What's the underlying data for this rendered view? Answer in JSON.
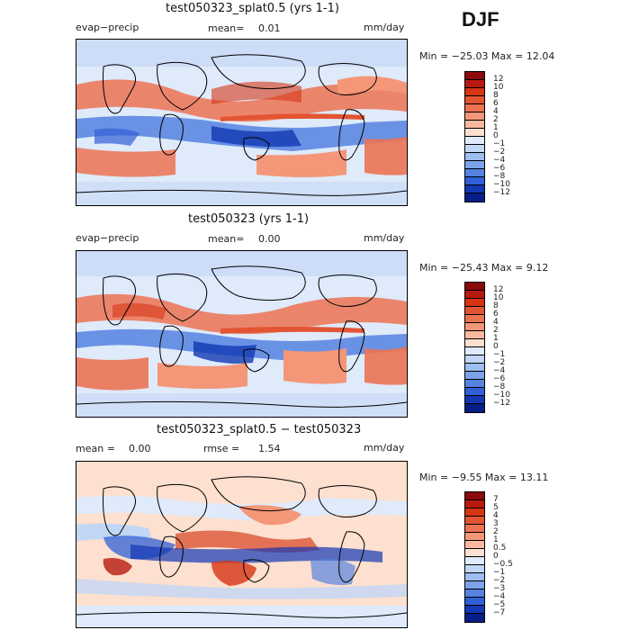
{
  "season": "DJF",
  "panels": [
    {
      "id": "top",
      "title": "test050323_splat0.5 (yrs 1-1)",
      "left_label": "evap−precip",
      "stat1_label": "mean=",
      "stat1_value": "0.01",
      "stat2_label": "",
      "stat2_value": "",
      "units": "mm/day",
      "minmax": "Min = −25.03  Max =   12.04",
      "levels": [
        "12",
        "10",
        "8",
        "6",
        "4",
        "2",
        "1",
        "0",
        "−1",
        "−2",
        "−4",
        "−6",
        "−8",
        "−10",
        "−12"
      ],
      "colors": [
        "#8b0a0a",
        "#b8190e",
        "#d63514",
        "#e35432",
        "#ec7352",
        "#f49678",
        "#f9b9a0",
        "#fde0cf",
        "#dfeafa",
        "#c2d6f5",
        "#9ebdf0",
        "#7ca2ea",
        "#5583e0",
        "#3060d6",
        "#1238b3",
        "#061e85"
      ]
    },
    {
      "id": "middle",
      "title": "test050323 (yrs 1-1)",
      "left_label": "evap−precip",
      "stat1_label": "mean=",
      "stat1_value": "0.00",
      "stat2_label": "",
      "stat2_value": "",
      "units": "mm/day",
      "minmax": "Min = −25.43  Max =    9.12",
      "levels": [
        "12",
        "10",
        "8",
        "6",
        "4",
        "2",
        "1",
        "0",
        "−1",
        "−2",
        "−4",
        "−6",
        "−8",
        "−10",
        "−12"
      ],
      "colors": [
        "#8b0a0a",
        "#b8190e",
        "#d63514",
        "#e35432",
        "#ec7352",
        "#f49678",
        "#f9b9a0",
        "#fde0cf",
        "#dfeafa",
        "#c2d6f5",
        "#9ebdf0",
        "#7ca2ea",
        "#5583e0",
        "#3060d6",
        "#1238b3",
        "#061e85"
      ]
    },
    {
      "id": "bottom",
      "title": "test050323_splat0.5 − test050323",
      "left_label": "",
      "stat1_label": "mean =",
      "stat1_value": "0.00",
      "stat2_label": "rmse =",
      "stat2_value": "1.54",
      "units": "mm/day",
      "minmax": "Min =  −9.55  Max =   13.11",
      "levels": [
        "7",
        "5",
        "4",
        "3",
        "2",
        "1",
        "0.5",
        "0",
        "−0.5",
        "−1",
        "−2",
        "−3",
        "−4",
        "−5",
        "−7"
      ],
      "colors": [
        "#8b0a0a",
        "#b8190e",
        "#d63514",
        "#e35432",
        "#ec7352",
        "#f49678",
        "#f9b9a0",
        "#fde0cf",
        "#dfeafa",
        "#c2d6f5",
        "#9ebdf0",
        "#7ca2ea",
        "#5583e0",
        "#3060d6",
        "#1238b3",
        "#061e85"
      ]
    }
  ]
}
